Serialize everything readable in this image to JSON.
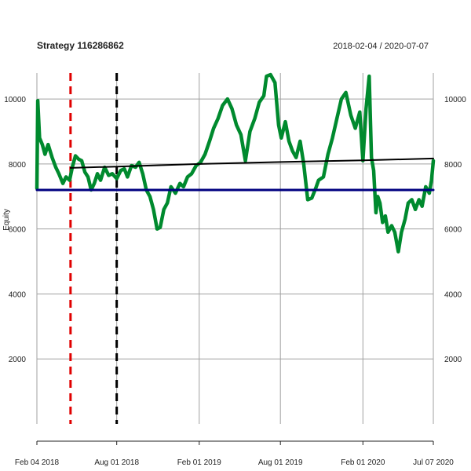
{
  "chart_data": {
    "type": "line",
    "title": "Strategy 116286862",
    "date_range": "2018-02-04 / 2020-07-07",
    "ylabel": "Equity",
    "xlabel": "",
    "x_range": [
      "2018-02-04",
      "2020-07-07"
    ],
    "ylim": [
      0,
      10800
    ],
    "y_ticks": [
      2000,
      4000,
      6000,
      8000,
      10000
    ],
    "x_ticks": [
      {
        "date": "2018-02-04",
        "label": "Feb 04 2018"
      },
      {
        "date": "2018-08-01",
        "label": "Aug 01 2018"
      },
      {
        "date": "2019-02-01",
        "label": "Feb 01 2019"
      },
      {
        "date": "2019-08-01",
        "label": "Aug 01 2019"
      },
      {
        "date": "2020-02-01",
        "label": "Feb 01 2020"
      },
      {
        "date": "2020-07-07",
        "label": "Jul 07 2020"
      }
    ],
    "grid": true,
    "series": [
      {
        "key": "equity",
        "color": "#008a2e",
        "x": [
          "2018-02-04",
          "2018-02-06",
          "2018-02-10",
          "2018-02-16",
          "2018-02-22",
          "2018-03-01",
          "2018-03-10",
          "2018-03-18",
          "2018-03-25",
          "2018-04-03",
          "2018-04-10",
          "2018-04-18",
          "2018-04-24",
          "2018-05-01",
          "2018-05-08",
          "2018-05-15",
          "2018-05-22",
          "2018-05-29",
          "2018-06-05",
          "2018-06-12",
          "2018-06-19",
          "2018-06-26",
          "2018-07-05",
          "2018-07-14",
          "2018-07-22",
          "2018-08-01",
          "2018-08-10",
          "2018-08-18",
          "2018-08-25",
          "2018-09-03",
          "2018-09-12",
          "2018-09-20",
          "2018-09-28",
          "2018-10-06",
          "2018-10-14",
          "2018-10-22",
          "2018-10-30",
          "2018-11-06",
          "2018-11-14",
          "2018-11-22",
          "2018-11-30",
          "2018-12-10",
          "2018-12-20",
          "2018-12-28",
          "2019-01-06",
          "2019-01-15",
          "2019-01-25",
          "2019-02-04",
          "2019-02-14",
          "2019-02-24",
          "2019-03-05",
          "2019-03-15",
          "2019-03-25",
          "2019-04-05",
          "2019-04-15",
          "2019-04-25",
          "2019-05-05",
          "2019-05-15",
          "2019-05-25",
          "2019-06-05",
          "2019-06-15",
          "2019-06-25",
          "2019-07-01",
          "2019-07-10",
          "2019-07-20",
          "2019-07-28",
          "2019-08-03",
          "2019-08-12",
          "2019-08-20",
          "2019-08-28",
          "2019-09-05",
          "2019-09-14",
          "2019-09-22",
          "2019-10-01",
          "2019-10-10",
          "2019-10-20",
          "2019-10-25",
          "2019-11-05",
          "2019-11-15",
          "2019-11-25",
          "2019-12-05",
          "2019-12-15",
          "2019-12-25",
          "2020-01-05",
          "2020-01-15",
          "2020-01-25",
          "2020-02-01",
          "2020-02-08",
          "2020-02-15",
          "2020-02-20",
          "2020-02-25",
          "2020-03-01",
          "2020-03-05",
          "2020-03-10",
          "2020-03-16",
          "2020-03-22",
          "2020-03-28",
          "2020-04-05",
          "2020-04-12",
          "2020-04-20",
          "2020-04-27",
          "2020-05-05",
          "2020-05-12",
          "2020-05-20",
          "2020-05-28",
          "2020-06-05",
          "2020-06-12",
          "2020-06-20",
          "2020-06-28",
          "2020-07-03",
          "2020-07-07"
        ],
        "values": [
          7250,
          9950,
          8800,
          8600,
          8300,
          8600,
          8200,
          7900,
          7700,
          7400,
          7600,
          7500,
          7900,
          8250,
          8150,
          8100,
          7750,
          7600,
          7200,
          7400,
          7700,
          7500,
          7900,
          7650,
          7700,
          7550,
          7800,
          7850,
          7600,
          7950,
          7900,
          8050,
          7700,
          7200,
          7000,
          6600,
          6000,
          6050,
          6600,
          6800,
          7300,
          7100,
          7400,
          7300,
          7600,
          7700,
          7950,
          8050,
          8300,
          8700,
          9100,
          9400,
          9800,
          10000,
          9700,
          9200,
          8900,
          8100,
          9000,
          9400,
          9900,
          10100,
          10700,
          10750,
          10500,
          9200,
          8800,
          9300,
          8700,
          8400,
          8200,
          8700,
          8000,
          6900,
          6950,
          7300,
          7500,
          7600,
          8300,
          8800,
          9400,
          10000,
          10200,
          9500,
          9100,
          9600,
          8100,
          9700,
          10700,
          8200,
          7800,
          6500,
          7000,
          6800,
          6200,
          6400,
          5900,
          6100,
          5900,
          5300,
          5900,
          6300,
          6800,
          6900,
          6600,
          6900,
          6700,
          7300,
          7100,
          7500,
          8100
        ]
      },
      {
        "key": "trend",
        "color": "#000000",
        "x": [
          "2018-04-20",
          "2018-08-01",
          "2019-02-01",
          "2019-08-01",
          "2020-02-01",
          "2020-07-07"
        ],
        "values": [
          7880,
          7920,
          8000,
          8060,
          8110,
          8170
        ]
      },
      {
        "key": "baseline",
        "color": "#000080",
        "x": [
          "2018-02-04",
          "2020-07-07"
        ],
        "values": [
          7200,
          7200
        ]
      }
    ],
    "vertical_markers": [
      {
        "date": "2018-04-20",
        "color": "#e00000"
      },
      {
        "date": "2018-08-01",
        "color": "#000000"
      }
    ]
  }
}
